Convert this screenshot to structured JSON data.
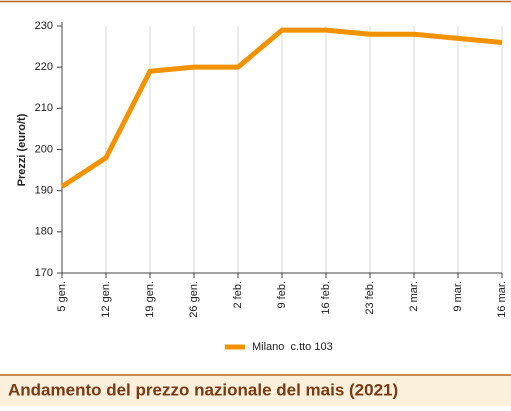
{
  "chart_data": {
    "type": "line",
    "title": "Andamento del prezzo nazionale del mais (2021)",
    "ylabel": "Prezzi (euro/t)",
    "categories": [
      "5 gen.",
      "12 gen.",
      "19 gen.",
      "26 gen.",
      "2 feb.",
      "9 feb.",
      "16 feb.",
      "23 feb.",
      "2 mar.",
      "9 mar.",
      "16 mar."
    ],
    "series": [
      {
        "name": "Milano  c.tto 103",
        "color": "#f39200",
        "values": [
          191,
          198,
          219,
          220,
          220,
          229,
          229,
          228,
          228,
          227,
          226
        ]
      }
    ],
    "ylim": [
      170,
      230
    ],
    "yticks": [
      170,
      180,
      190,
      200,
      210,
      220,
      230
    ],
    "grid": true
  }
}
